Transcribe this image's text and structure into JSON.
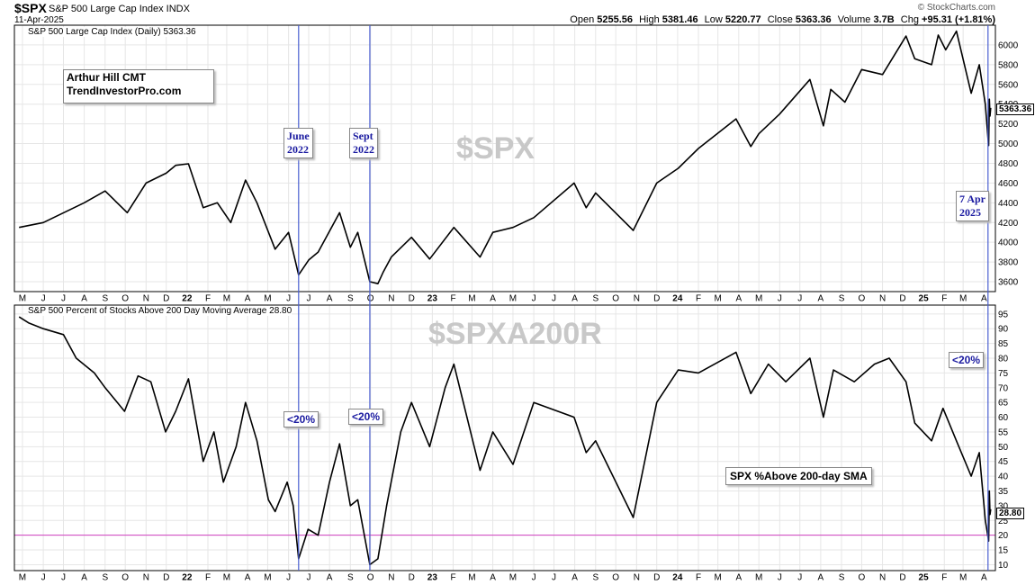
{
  "header": {
    "symbol": "$SPX",
    "name": "S&P 500 Large Cap Index  INDX",
    "date": "11-Apr-2025",
    "logo": "© StockCharts.com",
    "open_label": "Open",
    "open": "5255.56",
    "high_label": "High",
    "high": "5381.46",
    "low_label": "Low",
    "low": "5220.77",
    "close_label": "Close",
    "close": "5363.36",
    "volume_label": "Volume",
    "volume": "3.7B",
    "chg_label": "Chg",
    "chg": "+95.31 (+1.81%)"
  },
  "annotations": {
    "credit_line1": "Arthur Hill CMT",
    "credit_line2": "TrendInvestorPro.com",
    "june_1": "June",
    "june_2": "2022",
    "sept_1": "Sept",
    "sept_2": "2022",
    "apr_1": "7 Apr",
    "apr_2": "2025",
    "below20_a": "<20%",
    "below20_b": "<20%",
    "below20_c": "<20%",
    "sma_label": "SPX %Above 200-day SMA"
  },
  "colors": {
    "price_line": "#000000",
    "event_line": "#4a5fd0",
    "threshold_line": "#d040c0",
    "watermark": "#c8c8c8",
    "annotation_text": "#1a1aa0"
  },
  "chart_data": [
    {
      "type": "line",
      "title": "S&P 500 Large Cap Index (Daily) 5363.36",
      "watermark": "$SPX",
      "last_value": "5363.36",
      "ylim": [
        3500,
        6200
      ],
      "yticks": [
        3600,
        3800,
        4000,
        4200,
        4400,
        4600,
        4800,
        5000,
        5200,
        5400,
        5600,
        5800,
        6000
      ],
      "x": [
        "2021-04-26",
        "2021-06-01",
        "2021-08-01",
        "2021-09-01",
        "2021-10-04",
        "2021-11-01",
        "2021-12-01",
        "2021-12-15",
        "2022-01-03",
        "2022-01-25",
        "2022-02-15",
        "2022-03-07",
        "2022-03-29",
        "2022-04-15",
        "2022-05-12",
        "2022-06-01",
        "2022-06-16",
        "2022-07-01",
        "2022-07-15",
        "2022-08-16",
        "2022-09-01",
        "2022-09-12",
        "2022-09-30",
        "2022-10-12",
        "2022-10-20",
        "2022-11-01",
        "2022-12-01",
        "2022-12-28",
        "2023-02-02",
        "2023-03-13",
        "2023-04-01",
        "2023-05-01",
        "2023-06-01",
        "2023-07-31",
        "2023-08-18",
        "2023-09-01",
        "2023-10-27",
        "2023-12-01",
        "2024-01-02",
        "2024-02-01",
        "2024-03-28",
        "2024-04-19",
        "2024-05-01",
        "2024-06-01",
        "2024-07-16",
        "2024-08-05",
        "2024-08-16",
        "2024-09-06",
        "2024-10-01",
        "2024-11-01",
        "2024-12-06",
        "2024-12-19",
        "2025-01-13",
        "2025-01-23",
        "2025-02-03",
        "2025-02-19",
        "2025-03-13",
        "2025-03-25",
        "2025-04-03",
        "2025-04-07",
        "2025-04-08",
        "2025-04-09",
        "2025-04-10",
        "2025-04-11"
      ],
      "values": [
        4150,
        4200,
        4400,
        4520,
        4300,
        4600,
        4700,
        4780,
        4795,
        4350,
        4400,
        4200,
        4630,
        4400,
        3930,
        4100,
        3670,
        3820,
        3900,
        4300,
        3950,
        4100,
        3600,
        3580,
        3700,
        3850,
        4050,
        3830,
        4150,
        3850,
        4100,
        4150,
        4250,
        4600,
        4350,
        4500,
        4120,
        4600,
        4750,
        4950,
        5250,
        4970,
        5100,
        5300,
        5650,
        5180,
        5550,
        5420,
        5750,
        5700,
        6090,
        5860,
        5800,
        6100,
        5950,
        6140,
        5510,
        5800,
        5400,
        5050,
        4980,
        5450,
        5280,
        5363
      ],
      "xlabels": [
        "M",
        "J",
        "J",
        "A",
        "S",
        "O",
        "N",
        "D",
        "22",
        "F",
        "M",
        "A",
        "M",
        "J",
        "J",
        "A",
        "S",
        "O",
        "N",
        "D",
        "23",
        "F",
        "M",
        "A",
        "M",
        "J",
        "J",
        "A",
        "S",
        "O",
        "N",
        "D",
        "24",
        "F",
        "M",
        "A",
        "M",
        "J",
        "J",
        "A",
        "S",
        "O",
        "N",
        "D",
        "25",
        "F",
        "M",
        "A"
      ]
    },
    {
      "type": "line",
      "title": "S&P 500 Percent of Stocks Above 200 Day Moving Average 28.80",
      "watermark": "$SPXA200R",
      "last_value": "28.80",
      "threshold": 20,
      "ylim": [
        8,
        98
      ],
      "yticks": [
        10,
        15,
        20,
        25,
        30,
        35,
        40,
        45,
        50,
        55,
        60,
        65,
        70,
        75,
        80,
        85,
        90,
        95
      ],
      "x": [
        "2021-04-26",
        "2021-05-10",
        "2021-06-01",
        "2021-07-01",
        "2021-07-20",
        "2021-08-16",
        "2021-09-01",
        "2021-09-30",
        "2021-10-20",
        "2021-11-08",
        "2021-11-30",
        "2021-12-15",
        "2022-01-03",
        "2022-01-25",
        "2022-02-10",
        "2022-02-24",
        "2022-03-15",
        "2022-03-29",
        "2022-04-15",
        "2022-05-02",
        "2022-05-12",
        "2022-05-30",
        "2022-06-08",
        "2022-06-16",
        "2022-06-30",
        "2022-07-15",
        "2022-08-01",
        "2022-08-16",
        "2022-09-01",
        "2022-09-12",
        "2022-09-30",
        "2022-10-12",
        "2022-10-25",
        "2022-11-15",
        "2022-12-01",
        "2022-12-28",
        "2023-01-20",
        "2023-02-02",
        "2023-03-13",
        "2023-04-01",
        "2023-05-01",
        "2023-06-01",
        "2023-07-31",
        "2023-08-18",
        "2023-09-01",
        "2023-10-27",
        "2023-12-01",
        "2024-01-02",
        "2024-02-01",
        "2024-03-28",
        "2024-04-19",
        "2024-05-15",
        "2024-06-10",
        "2024-07-16",
        "2024-08-05",
        "2024-08-20",
        "2024-09-20",
        "2024-10-20",
        "2024-11-11",
        "2024-12-06",
        "2024-12-19",
        "2025-01-13",
        "2025-01-30",
        "2025-02-19",
        "2025-03-13",
        "2025-03-25",
        "2025-04-03",
        "2025-04-08",
        "2025-04-09",
        "2025-04-10",
        "2025-04-11"
      ],
      "values": [
        94,
        92,
        90,
        88,
        80,
        75,
        70,
        62,
        74,
        72,
        55,
        62,
        73,
        45,
        55,
        38,
        50,
        65,
        52,
        32,
        28,
        38,
        30,
        12,
        22,
        20,
        38,
        51,
        30,
        32,
        10,
        12,
        30,
        55,
        65,
        50,
        70,
        78,
        42,
        55,
        44,
        65,
        60,
        48,
        52,
        26,
        65,
        76,
        75,
        82,
        68,
        78,
        72,
        80,
        60,
        76,
        72,
        78,
        80,
        72,
        58,
        52,
        63,
        52,
        40,
        48,
        25,
        18,
        35,
        27,
        28.8
      ],
      "xlabels": [
        "M",
        "J",
        "J",
        "A",
        "S",
        "O",
        "N",
        "D",
        "22",
        "F",
        "M",
        "A",
        "M",
        "J",
        "J",
        "A",
        "S",
        "O",
        "N",
        "D",
        "23",
        "F",
        "M",
        "A",
        "M",
        "J",
        "J",
        "A",
        "S",
        "O",
        "N",
        "D",
        "24",
        "F",
        "M",
        "A",
        "M",
        "J",
        "J",
        "A",
        "S",
        "O",
        "N",
        "D",
        "25",
        "F",
        "M",
        "A"
      ]
    }
  ]
}
